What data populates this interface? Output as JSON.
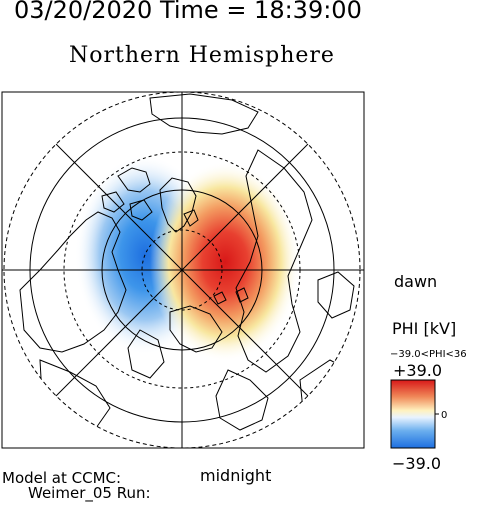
{
  "header": {
    "date_time_line": "03/20/2020 Time = 18:39:00",
    "title": "Northern Hemisphere"
  },
  "map": {
    "dawn_label": "dawn",
    "midnight_label": "midnight",
    "dusk_cell_color": "#3a8fe6",
    "dawn_cell_color": "#e02020"
  },
  "colorbar": {
    "title": "PHI [kV]",
    "range_text": "−39.0<PHI<36",
    "max_label": "+39.0",
    "zero_label": "0",
    "min_label": "−39.0",
    "max_value": 39.0,
    "min_value": -39.0
  },
  "footer": {
    "model_line": "Model at CCMC:",
    "run_line": "Weimer_05 Run:"
  }
}
